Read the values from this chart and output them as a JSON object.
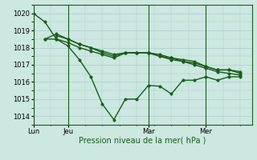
{
  "background_color": "#cce8e0",
  "grid_color": "#aacccc",
  "line_color": "#1a5c1a",
  "xlabel": "Pression niveau de la mer( hPa )",
  "xtick_labels": [
    "Lun",
    "Jeu",
    "Mar",
    "Mer"
  ],
  "xtick_positions": [
    0,
    3,
    10,
    15
  ],
  "vline_positions": [
    0,
    3,
    10,
    15
  ],
  "ylim": [
    1013.5,
    1020.5
  ],
  "yticks": [
    1014,
    1015,
    1016,
    1017,
    1018,
    1019,
    1020
  ],
  "xlim": [
    0,
    19
  ],
  "series": [
    {
      "x": [
        0,
        1,
        2,
        3,
        4,
        5,
        6,
        7,
        8,
        9,
        10,
        11,
        12,
        13,
        14,
        15,
        16,
        17,
        18
      ],
      "y": [
        1020.0,
        1019.5,
        1018.5,
        1018.1,
        1017.3,
        1016.3,
        1014.7,
        1013.8,
        1015.0,
        1015.0,
        1015.8,
        1015.75,
        1015.3,
        1016.1,
        1016.1,
        1016.3,
        1016.1,
        1016.3,
        1016.3
      ],
      "style": "solid"
    },
    {
      "x": [
        1,
        2,
        3,
        4,
        5,
        6,
        7,
        8,
        9,
        10,
        11,
        12,
        13,
        14,
        15,
        16,
        17,
        18
      ],
      "y": [
        1018.5,
        1018.8,
        1018.5,
        1018.2,
        1018.0,
        1017.8,
        1017.6,
        1017.7,
        1017.7,
        1017.7,
        1017.5,
        1017.4,
        1017.3,
        1017.2,
        1016.9,
        1016.7,
        1016.7,
        1016.6
      ],
      "style": "solid"
    },
    {
      "x": [
        1,
        2,
        3,
        4,
        5,
        6,
        7,
        8,
        9,
        10,
        11,
        12,
        13,
        14,
        15,
        16,
        17,
        18
      ],
      "y": [
        1018.5,
        1018.5,
        1018.3,
        1018.0,
        1017.8,
        1017.6,
        1017.4,
        1017.7,
        1017.7,
        1017.7,
        1017.5,
        1017.3,
        1017.2,
        1017.1,
        1016.9,
        1016.7,
        1016.7,
        1016.5
      ],
      "style": "solid"
    },
    {
      "x": [
        2,
        3,
        4,
        5,
        6,
        7,
        8,
        9,
        10,
        11,
        12,
        13,
        14,
        15,
        16,
        17,
        18
      ],
      "y": [
        1018.7,
        1018.5,
        1018.2,
        1018.0,
        1017.7,
        1017.5,
        1017.7,
        1017.7,
        1017.7,
        1017.6,
        1017.4,
        1017.2,
        1017.0,
        1016.8,
        1016.6,
        1016.5,
        1016.4
      ],
      "style": "solid"
    }
  ],
  "marker": "o",
  "markersize": 2.5,
  "linewidth": 1.0,
  "tick_fontsize": 6,
  "xlabel_fontsize": 7
}
